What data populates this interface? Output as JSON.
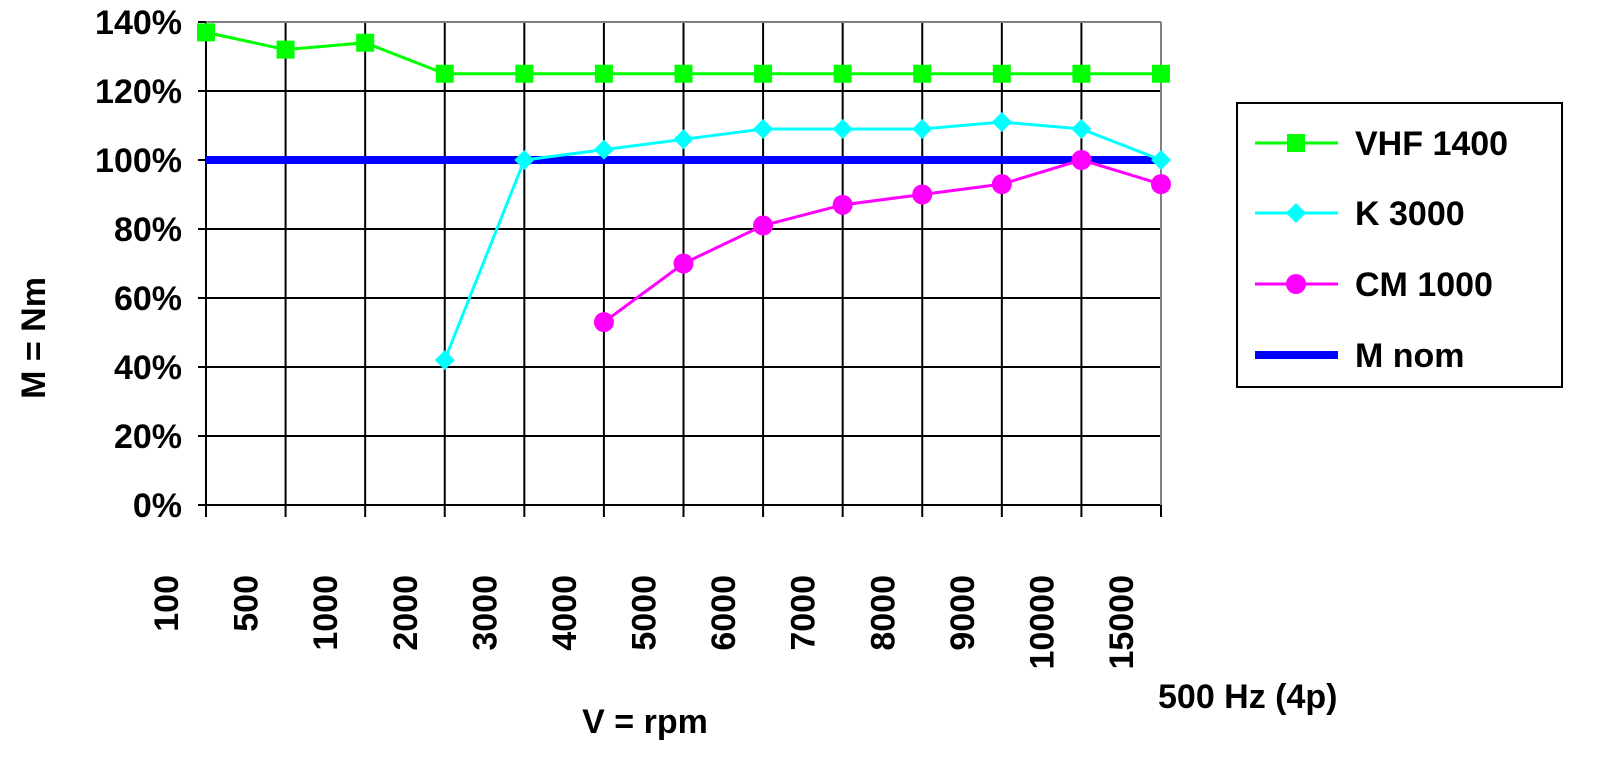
{
  "chart_data": {
    "type": "line",
    "xlabel": "V = rpm",
    "ylabel": "M = Nm",
    "annotation": "500 Hz (4p)",
    "categories": [
      "100",
      "500",
      "1000",
      "2000",
      "3000",
      "4000",
      "5000",
      "6000",
      "7000",
      "8000",
      "9000",
      "10000",
      "15000"
    ],
    "yticks": [
      "0%",
      "20%",
      "40%",
      "60%",
      "80%",
      "100%",
      "120%",
      "140%"
    ],
    "ylim": [
      0,
      140
    ],
    "grid": true,
    "legend_position": "right",
    "series": [
      {
        "name": "VHF 1400",
        "color": "#00ff00",
        "marker": "square",
        "values": [
          137,
          132,
          134,
          125,
          125,
          125,
          125,
          125,
          125,
          125,
          125,
          125,
          125
        ]
      },
      {
        "name": "K 3000",
        "color": "#00ffff",
        "marker": "diamond",
        "values": [
          null,
          null,
          null,
          42,
          100,
          103,
          106,
          109,
          109,
          109,
          111,
          109,
          100
        ]
      },
      {
        "name": "CM 1000",
        "color": "#ff00ff",
        "marker": "circle",
        "values": [
          null,
          null,
          null,
          null,
          null,
          53,
          70,
          81,
          87,
          90,
          93,
          100,
          93
        ]
      },
      {
        "name": "M nom",
        "color": "#0000ff",
        "marker": "none",
        "values": [
          100,
          100,
          100,
          100,
          100,
          100,
          100,
          100,
          100,
          100,
          100,
          100,
          100
        ]
      }
    ]
  }
}
